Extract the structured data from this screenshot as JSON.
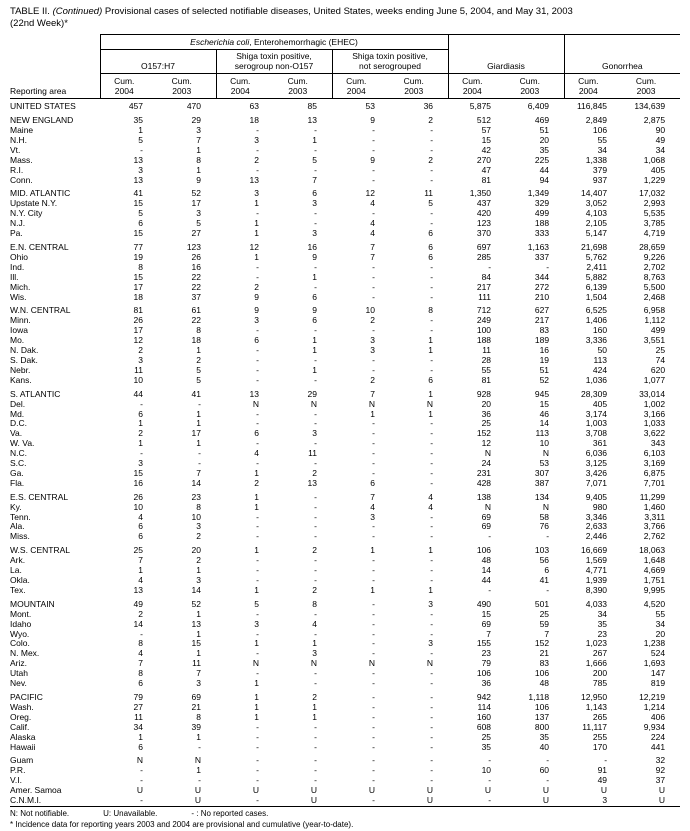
{
  "title": {
    "label": "TABLE II.",
    "continued": "(Continued)",
    "text": "Provisional cases of selected notifiable diseases, United States, weeks ending June 5, 2004, and May 31, 2003",
    "week": "(22nd Week)*"
  },
  "header": {
    "reporting_area": "Reporting area",
    "ehec_italic": "Escherichia coli",
    "ehec_rest": ", Enterohemorrhagic (EHEC)",
    "subgroups": [
      {
        "line1": "O157:H7",
        "line2": ""
      },
      {
        "line1": "Shiga toxin positive,",
        "line2": "serogroup non-O157"
      },
      {
        "line1": "Shiga toxin positive,",
        "line2": "not serogrouped"
      }
    ],
    "giardiasis": "Giardiasis",
    "gonorrhea": "Gonorrhea",
    "cum_label": "Cum.",
    "years": [
      "2004",
      "2003"
    ]
  },
  "sections": [
    {
      "rows": [
        [
          "UNITED STATES",
          "457",
          "470",
          "63",
          "85",
          "53",
          "36",
          "5,875",
          "6,409",
          "116,845",
          "134,639"
        ]
      ]
    },
    {
      "rows": [
        [
          "NEW ENGLAND",
          "35",
          "29",
          "18",
          "13",
          "9",
          "2",
          "512",
          "469",
          "2,849",
          "2,875"
        ],
        [
          "Maine",
          "1",
          "3",
          "-",
          "-",
          "-",
          "-",
          "57",
          "51",
          "106",
          "90"
        ],
        [
          "N.H.",
          "5",
          "7",
          "3",
          "1",
          "-",
          "-",
          "15",
          "20",
          "55",
          "49"
        ],
        [
          "Vt.",
          "-",
          "1",
          "-",
          "-",
          "-",
          "-",
          "42",
          "35",
          "34",
          "34"
        ],
        [
          "Mass.",
          "13",
          "8",
          "2",
          "5",
          "9",
          "2",
          "270",
          "225",
          "1,338",
          "1,068"
        ],
        [
          "R.I.",
          "3",
          "1",
          "-",
          "-",
          "-",
          "-",
          "47",
          "44",
          "379",
          "405"
        ],
        [
          "Conn.",
          "13",
          "9",
          "13",
          "7",
          "-",
          "-",
          "81",
          "94",
          "937",
          "1,229"
        ]
      ]
    },
    {
      "rows": [
        [
          "MID. ATLANTIC",
          "41",
          "52",
          "3",
          "6",
          "12",
          "11",
          "1,350",
          "1,349",
          "14,407",
          "17,032"
        ],
        [
          "Upstate N.Y.",
          "15",
          "17",
          "1",
          "3",
          "4",
          "5",
          "437",
          "329",
          "3,052",
          "2,993"
        ],
        [
          "N.Y. City",
          "5",
          "3",
          "-",
          "-",
          "-",
          "-",
          "420",
          "499",
          "4,103",
          "5,535"
        ],
        [
          "N.J.",
          "6",
          "5",
          "1",
          "-",
          "4",
          "-",
          "123",
          "188",
          "2,105",
          "3,785"
        ],
        [
          "Pa.",
          "15",
          "27",
          "1",
          "3",
          "4",
          "6",
          "370",
          "333",
          "5,147",
          "4,719"
        ]
      ]
    },
    {
      "rows": [
        [
          "E.N. CENTRAL",
          "77",
          "123",
          "12",
          "16",
          "7",
          "6",
          "697",
          "1,163",
          "21,698",
          "28,659"
        ],
        [
          "Ohio",
          "19",
          "26",
          "1",
          "9",
          "7",
          "6",
          "285",
          "337",
          "5,762",
          "9,226"
        ],
        [
          "Ind.",
          "8",
          "16",
          "-",
          "-",
          "-",
          "-",
          "-",
          "-",
          "2,411",
          "2,702"
        ],
        [
          "Ill.",
          "15",
          "22",
          "-",
          "1",
          "-",
          "-",
          "84",
          "344",
          "5,882",
          "8,763"
        ],
        [
          "Mich.",
          "17",
          "22",
          "2",
          "-",
          "-",
          "-",
          "217",
          "272",
          "6,139",
          "5,500"
        ],
        [
          "Wis.",
          "18",
          "37",
          "9",
          "6",
          "-",
          "-",
          "111",
          "210",
          "1,504",
          "2,468"
        ]
      ]
    },
    {
      "rows": [
        [
          "W.N. CENTRAL",
          "81",
          "61",
          "9",
          "9",
          "10",
          "8",
          "712",
          "627",
          "6,525",
          "6,958"
        ],
        [
          "Minn.",
          "26",
          "22",
          "3",
          "6",
          "2",
          "-",
          "249",
          "217",
          "1,406",
          "1,112"
        ],
        [
          "Iowa",
          "17",
          "8",
          "-",
          "-",
          "-",
          "-",
          "100",
          "83",
          "160",
          "499"
        ],
        [
          "Mo.",
          "12",
          "18",
          "6",
          "1",
          "3",
          "1",
          "188",
          "189",
          "3,336",
          "3,551"
        ],
        [
          "N. Dak.",
          "2",
          "1",
          "-",
          "1",
          "3",
          "1",
          "11",
          "16",
          "50",
          "25"
        ],
        [
          "S. Dak.",
          "3",
          "2",
          "-",
          "-",
          "-",
          "-",
          "28",
          "19",
          "113",
          "74"
        ],
        [
          "Nebr.",
          "11",
          "5",
          "-",
          "1",
          "-",
          "-",
          "55",
          "51",
          "424",
          "620"
        ],
        [
          "Kans.",
          "10",
          "5",
          "-",
          "-",
          "2",
          "6",
          "81",
          "52",
          "1,036",
          "1,077"
        ]
      ]
    },
    {
      "rows": [
        [
          "S. ATLANTIC",
          "44",
          "41",
          "13",
          "29",
          "7",
          "1",
          "928",
          "945",
          "28,309",
          "33,014"
        ],
        [
          "Del.",
          "-",
          "-",
          "N",
          "N",
          "N",
          "N",
          "20",
          "15",
          "405",
          "1,002"
        ],
        [
          "Md.",
          "6",
          "1",
          "-",
          "-",
          "1",
          "1",
          "36",
          "46",
          "3,174",
          "3,166"
        ],
        [
          "D.C.",
          "1",
          "1",
          "-",
          "-",
          "-",
          "-",
          "25",
          "14",
          "1,003",
          "1,033"
        ],
        [
          "Va.",
          "2",
          "17",
          "6",
          "3",
          "-",
          "-",
          "152",
          "113",
          "3,708",
          "3,622"
        ],
        [
          "W. Va.",
          "1",
          "1",
          "-",
          "-",
          "-",
          "-",
          "12",
          "10",
          "361",
          "343"
        ],
        [
          "N.C.",
          "-",
          "-",
          "4",
          "11",
          "-",
          "-",
          "N",
          "N",
          "6,036",
          "6,103"
        ],
        [
          "S.C.",
          "3",
          "-",
          "-",
          "-",
          "-",
          "-",
          "24",
          "53",
          "3,125",
          "3,169"
        ],
        [
          "Ga.",
          "15",
          "7",
          "1",
          "2",
          "-",
          "-",
          "231",
          "307",
          "3,426",
          "6,875"
        ],
        [
          "Fla.",
          "16",
          "14",
          "2",
          "13",
          "6",
          "-",
          "428",
          "387",
          "7,071",
          "7,701"
        ]
      ]
    },
    {
      "rows": [
        [
          "E.S. CENTRAL",
          "26",
          "23",
          "1",
          "-",
          "7",
          "4",
          "138",
          "134",
          "9,405",
          "11,299"
        ],
        [
          "Ky.",
          "10",
          "8",
          "1",
          "-",
          "4",
          "4",
          "N",
          "N",
          "980",
          "1,460"
        ],
        [
          "Tenn.",
          "4",
          "10",
          "-",
          "-",
          "3",
          "-",
          "69",
          "58",
          "3,346",
          "3,311"
        ],
        [
          "Ala.",
          "6",
          "3",
          "-",
          "-",
          "-",
          "-",
          "69",
          "76",
          "2,633",
          "3,766"
        ],
        [
          "Miss.",
          "6",
          "2",
          "-",
          "-",
          "-",
          "-",
          "-",
          "-",
          "2,446",
          "2,762"
        ]
      ]
    },
    {
      "rows": [
        [
          "W.S. CENTRAL",
          "25",
          "20",
          "1",
          "2",
          "1",
          "1",
          "106",
          "103",
          "16,669",
          "18,063"
        ],
        [
          "Ark.",
          "7",
          "2",
          "-",
          "-",
          "-",
          "-",
          "48",
          "56",
          "1,569",
          "1,648"
        ],
        [
          "La.",
          "1",
          "1",
          "-",
          "-",
          "-",
          "-",
          "14",
          "6",
          "4,771",
          "4,669"
        ],
        [
          "Okla.",
          "4",
          "3",
          "-",
          "-",
          "-",
          "-",
          "44",
          "41",
          "1,939",
          "1,751"
        ],
        [
          "Tex.",
          "13",
          "14",
          "1",
          "2",
          "1",
          "1",
          "-",
          "-",
          "8,390",
          "9,995"
        ]
      ]
    },
    {
      "rows": [
        [
          "MOUNTAIN",
          "49",
          "52",
          "5",
          "8",
          "-",
          "3",
          "490",
          "501",
          "4,033",
          "4,520"
        ],
        [
          "Mont.",
          "2",
          "1",
          "-",
          "-",
          "-",
          "-",
          "15",
          "25",
          "34",
          "55"
        ],
        [
          "Idaho",
          "14",
          "13",
          "3",
          "4",
          "-",
          "-",
          "69",
          "59",
          "35",
          "34"
        ],
        [
          "Wyo.",
          "-",
          "1",
          "-",
          "-",
          "-",
          "-",
          "7",
          "7",
          "23",
          "20"
        ],
        [
          "Colo.",
          "8",
          "15",
          "1",
          "1",
          "-",
          "3",
          "155",
          "152",
          "1,023",
          "1,238"
        ],
        [
          "N. Mex.",
          "4",
          "1",
          "-",
          "3",
          "-",
          "-",
          "23",
          "21",
          "267",
          "524"
        ],
        [
          "Ariz.",
          "7",
          "11",
          "N",
          "N",
          "N",
          "N",
          "79",
          "83",
          "1,666",
          "1,693"
        ],
        [
          "Utah",
          "8",
          "7",
          "-",
          "-",
          "-",
          "-",
          "106",
          "106",
          "200",
          "147"
        ],
        [
          "Nev.",
          "6",
          "3",
          "1",
          "-",
          "-",
          "-",
          "36",
          "48",
          "785",
          "819"
        ]
      ]
    },
    {
      "rows": [
        [
          "PACIFIC",
          "79",
          "69",
          "1",
          "2",
          "-",
          "-",
          "942",
          "1,118",
          "12,950",
          "12,219"
        ],
        [
          "Wash.",
          "27",
          "21",
          "1",
          "1",
          "-",
          "-",
          "114",
          "106",
          "1,143",
          "1,214"
        ],
        [
          "Oreg.",
          "11",
          "8",
          "1",
          "1",
          "-",
          "-",
          "160",
          "137",
          "265",
          "406"
        ],
        [
          "Calif.",
          "34",
          "39",
          "-",
          "-",
          "-",
          "-",
          "608",
          "800",
          "11,117",
          "9,934"
        ],
        [
          "Alaska",
          "1",
          "1",
          "-",
          "-",
          "-",
          "-",
          "25",
          "35",
          "255",
          "224"
        ],
        [
          "Hawaii",
          "6",
          "-",
          "-",
          "-",
          "-",
          "-",
          "35",
          "40",
          "170",
          "441"
        ]
      ]
    },
    {
      "rows": [
        [
          "Guam",
          "N",
          "N",
          "-",
          "-",
          "-",
          "-",
          "-",
          "-",
          "-",
          "32"
        ],
        [
          "P.R.",
          "-",
          "1",
          "-",
          "-",
          "-",
          "-",
          "10",
          "60",
          "91",
          "92"
        ],
        [
          "V.I.",
          "-",
          "-",
          "-",
          "-",
          "-",
          "-",
          "-",
          "-",
          "49",
          "37"
        ],
        [
          "Amer. Samoa",
          "U",
          "U",
          "U",
          "U",
          "U",
          "U",
          "U",
          "U",
          "U",
          "U"
        ],
        [
          "C.N.M.I.",
          "-",
          "U",
          "-",
          "U",
          "-",
          "U",
          "-",
          "U",
          "3",
          "U"
        ]
      ]
    }
  ],
  "footnotes": {
    "legend_items": [
      "N: Not notifiable.",
      "U: Unavailable.",
      "- : No reported cases."
    ],
    "note": "* Incidence data for reporting years 2003 and 2004 are provisional and cumulative (year-to-date)."
  }
}
